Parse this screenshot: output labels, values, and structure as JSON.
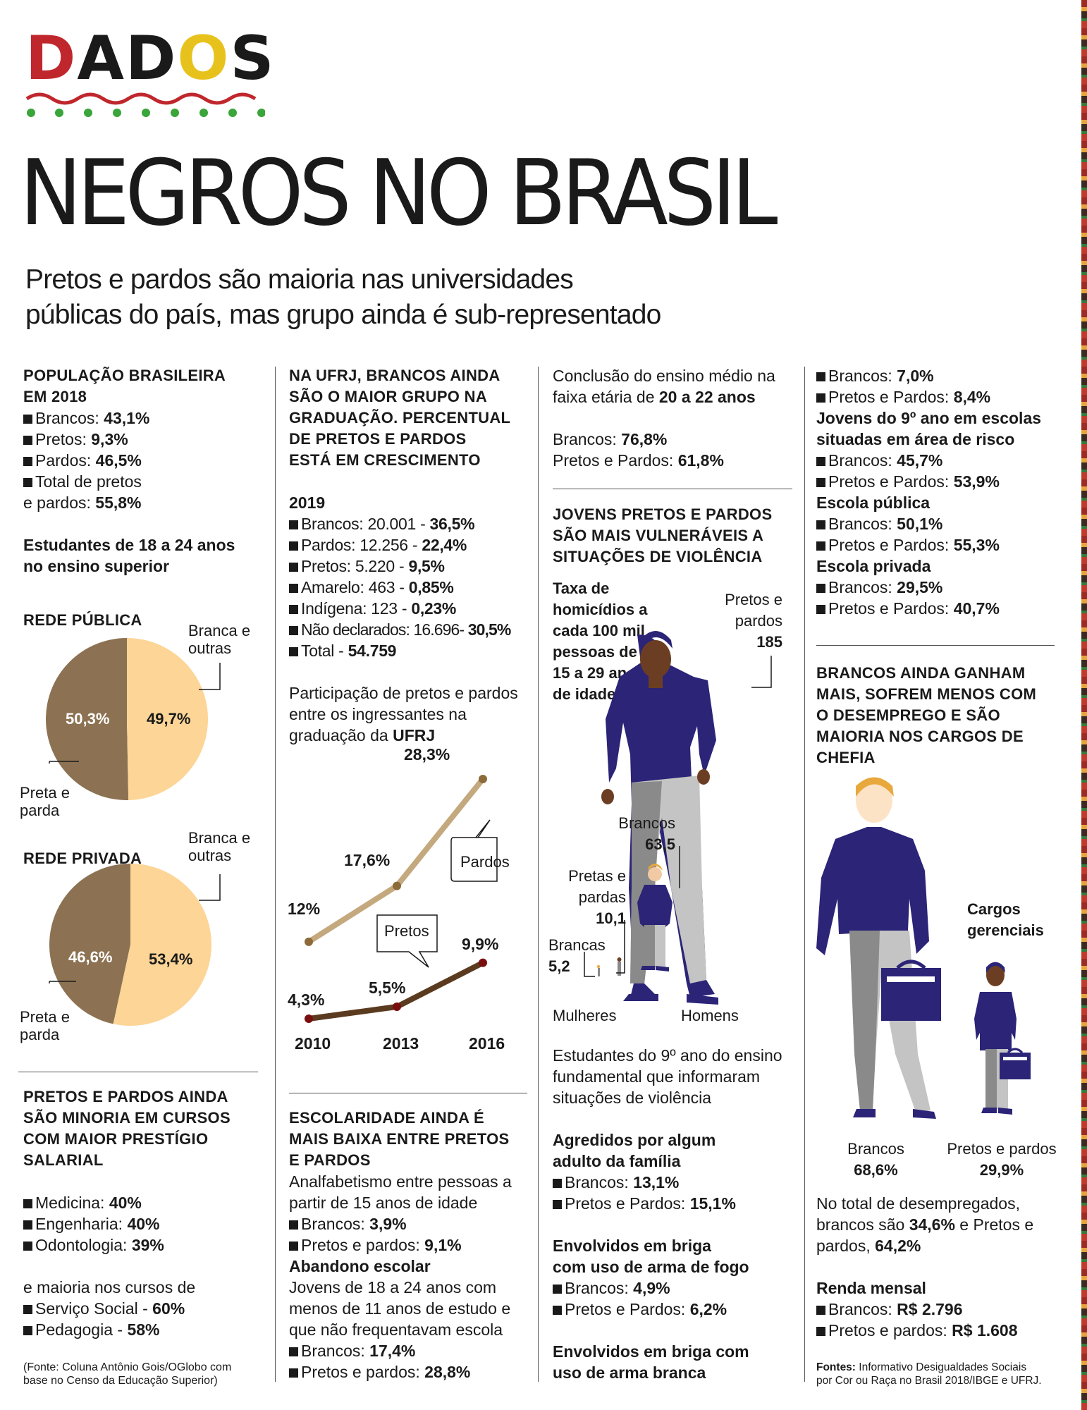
{
  "brand": "DADOS",
  "title": "NEGROS NO BRASIL",
  "subtitle_line1": "Pretos e pardos são maioria nas universidades",
  "subtitle_line2": "públicas do país, mas grupo ainda é sub-representado",
  "colors": {
    "brown": "#8c7252",
    "peach": "#fcd597",
    "tan_line": "#c4a97e",
    "dark_line": "#5b3b1f",
    "navy": "#2b2477",
    "gray_pants": "#8a8a8a",
    "light_pants": "#c4c4c4"
  },
  "col1": {
    "pop_head_1": "POPULAÇÃO BRASILEIRA",
    "pop_head_2": "EM 2018",
    "pop_items": [
      {
        "label": "Brancos: ",
        "value": "43,1%"
      },
      {
        "label": "Pretos: ",
        "value": "9,3%"
      },
      {
        "label": "Pardos: ",
        "value": "46,5%"
      }
    ],
    "pop_total_1": "Total de pretos",
    "pop_total_2": "e pardos: ",
    "pop_total_value": "55,8%",
    "students_1": "Estudantes de 18 a 24 anos",
    "students_2": "no ensino superior",
    "rede_publica": "REDE PÚBLICA",
    "rede_privada": "REDE PRIVADA",
    "label_branca_1": "Branca e",
    "label_branca_2": "outras",
    "label_preta_1": "Preta e",
    "label_preta_2": "parda",
    "pie_publica": {
      "preta_parda": "50,3%",
      "branca_outras": "49,7%",
      "preta_parda_value": 50.3
    },
    "pie_privada": {
      "preta_parda": "46,6%",
      "branca_outras": "53,4%",
      "preta_parda_value": 46.6
    },
    "prestige_head": [
      "PRETOS E PARDOS AINDA",
      "SÃO MINORIA EM CURSOS",
      "COM MAIOR PRESTÍGIO",
      "SALARIAL"
    ],
    "prestige_items": [
      {
        "label": "Medicina: ",
        "value": "40%"
      },
      {
        "label": "Engenharia: ",
        "value": "40%"
      },
      {
        "label": "Odontologia: ",
        "value": "39%"
      }
    ],
    "majority_intro": "e maioria nos cursos de",
    "majority_items": [
      {
        "label": "Serviço Social - ",
        "value": "60%"
      },
      {
        "label": "Pedagogia - ",
        "value": "58%"
      }
    ],
    "source_1": "(Fonte: Coluna Antônio Gois/OGlobo com",
    "source_2": "base no Censo da Educação Superior)"
  },
  "col2": {
    "ufrj_head": [
      "NA UFRJ, BRANCOS AINDA",
      "SÃO O MAIOR GRUPO NA",
      "GRADUAÇÃO. PERCENTUAL",
      "DE PRETOS E PARDOS",
      "ESTÁ EM CRESCIMENTO"
    ],
    "year": "2019",
    "ufrj_items": [
      {
        "label": "Brancos: 20.001 - ",
        "value": "36,5%"
      },
      {
        "label": "Pardos: 12.256 - ",
        "value": "22,4%"
      },
      {
        "label": "Pretos: 5.220 - ",
        "value": "9,5%"
      },
      {
        "label": "Amarelo: 463 - ",
        "value": "0,85%"
      },
      {
        "label": "Indígena: 123 - ",
        "value": "0,23%"
      },
      {
        "label": "Não declarados: 16.696- ",
        "value": "30,5%"
      },
      {
        "label": "Total - ",
        "value": "54.759"
      }
    ],
    "part_1": "Participação de pretos e pardos",
    "part_2": "entre os ingressantes na",
    "part_3": "graduação da ",
    "part_3b": "UFRJ",
    "escol_head": [
      "ESCOLARIDADE AINDA É",
      "MAIS BAIXA ENTRE PRETOS",
      "E PARDOS"
    ],
    "analf_1": "Analfabetismo entre pessoas a",
    "analf_2": "partir de 15 anos de idade",
    "analf_items": [
      {
        "label": "Brancos: ",
        "value": "3,9%"
      },
      {
        "label": "Pretos e pardos: ",
        "value": "9,1%"
      }
    ],
    "abandono": "Abandono escolar",
    "aband_1": "Jovens de 18 a 24 anos com",
    "aband_2": "menos de 11 anos de estudo e",
    "aband_3": "que não frequentavam escola",
    "aband_items": [
      {
        "label": "Brancos: ",
        "value": "17,4%"
      },
      {
        "label": "Pretos e pardos: ",
        "value": "28,8%"
      }
    ]
  },
  "chart_data": {
    "type": "line",
    "title": "",
    "x": [
      "2010",
      "2013",
      "2016"
    ],
    "series": [
      {
        "name": "Pardos",
        "values": [
          12,
          17.6,
          28.3
        ],
        "labels": [
          "12%",
          "17,6%",
          "28,3%"
        ]
      },
      {
        "name": "Pretos",
        "values": [
          4.3,
          5.5,
          9.9
        ],
        "labels": [
          "4,3%",
          "5,5%",
          "9,9%"
        ]
      }
    ]
  },
  "col3": {
    "concl_1": "Conclusão do ensino médio na",
    "concl_2": "faixa etária de ",
    "concl_2b": "20 a 22 anos",
    "concl_items": [
      {
        "label": "Brancos: ",
        "value": "76,8%"
      },
      {
        "label": "Pretos e Pardos: ",
        "value": "61,8%"
      }
    ],
    "viol_head": [
      "JOVENS PRETOS E PARDOS",
      "SÃO MAIS VULNERÁVEIS A",
      "SITUAÇÕES DE VIOLÊNCIA"
    ],
    "taxa": [
      "Taxa de",
      "homicídios a",
      "cada 100 mil",
      "pessoas de",
      "15 a 29 anos",
      "de idade"
    ],
    "fig_pp_h_1": "Pretos e",
    "fig_pp_h_2": "pardos",
    "fig_pp_h_v": "185",
    "fig_br_h_1": "Brancos",
    "fig_br_h_v": "63,5",
    "fig_pp_m_1": "Pretas e",
    "fig_pp_m_2": "pardas",
    "fig_pp_m_v": "10,1",
    "fig_br_m_1": "Brancas",
    "fig_br_m_v": "5,2",
    "mulheres": "Mulheres",
    "homens": "Homens",
    "est_1": "Estudantes do 9º ano do ensino",
    "est_2": "fundamental que informaram",
    "est_3": "situações de violência",
    "agred_1": "Agredidos por algum",
    "agred_2": "adulto da família",
    "agred_items": [
      {
        "label": "Brancos: ",
        "value": "13,1%"
      },
      {
        "label": "Pretos e Pardos: ",
        "value": "15,1%"
      }
    ],
    "fogo_1": "Envolvidos em briga",
    "fogo_2": "com uso de arma de fogo",
    "fogo_items": [
      {
        "label": "Brancos: ",
        "value": "4,9%"
      },
      {
        "label": "Pretos e Pardos: ",
        "value": "6,2%"
      }
    ],
    "branca_1": "Envolvidos em briga com",
    "branca_2": "uso de arma branca"
  },
  "col4": {
    "top_items": [
      {
        "label": "Brancos: ",
        "value": "7,0%"
      },
      {
        "label": "Pretos e Pardos: ",
        "value": "8,4%"
      }
    ],
    "risco_1": "Jovens do 9º ano em escolas",
    "risco_2": "situadas em área de risco",
    "risco_items": [
      {
        "label": "Brancos: ",
        "value": "45,7%"
      },
      {
        "label": "Pretos e Pardos: ",
        "value": "53,9%"
      }
    ],
    "publica": "Escola pública",
    "publica_items": [
      {
        "label": "Brancos: ",
        "value": "50,1%"
      },
      {
        "label": "Pretos e Pardos: ",
        "value": "55,3%"
      }
    ],
    "privada": "Escola privada",
    "privada_items": [
      {
        "label": "Brancos: ",
        "value": "29,5%"
      },
      {
        "label": "Pretos e Pardos: ",
        "value": "40,7%"
      }
    ],
    "ganham_head": [
      "BRANCOS AINDA GANHAM",
      "MAIS, SOFREM MENOS COM",
      "O DESEMPREGO E SÃO",
      "MAIORIA NOS CARGOS DE",
      "CHEFIA"
    ],
    "cargos_1": "Cargos",
    "cargos_2": "gerenciais",
    "brancos_lbl": "Brancos",
    "brancos_val": "68,6%",
    "pp_lbl": "Pretos e pardos",
    "pp_val": "29,9%",
    "desemp_1": "No total de desempregados,",
    "desemp_2a": "brancos são ",
    "desemp_2b": "34,6%",
    "desemp_2c": " e Pretos e",
    "desemp_3a": "pardos, ",
    "desemp_3b": "64,2%",
    "renda": "Renda mensal",
    "renda_items": [
      {
        "label": "Brancos: ",
        "value": "R$ 2.796"
      },
      {
        "label": "Pretos e pardos: ",
        "value": "R$ 1.608"
      }
    ],
    "fontes_b": "Fontes:",
    "fontes_1": " Informativo Desigualdades Sociais",
    "fontes_2": "por Cor ou Raça no Brasil 2018/IBGE e UFRJ."
  }
}
